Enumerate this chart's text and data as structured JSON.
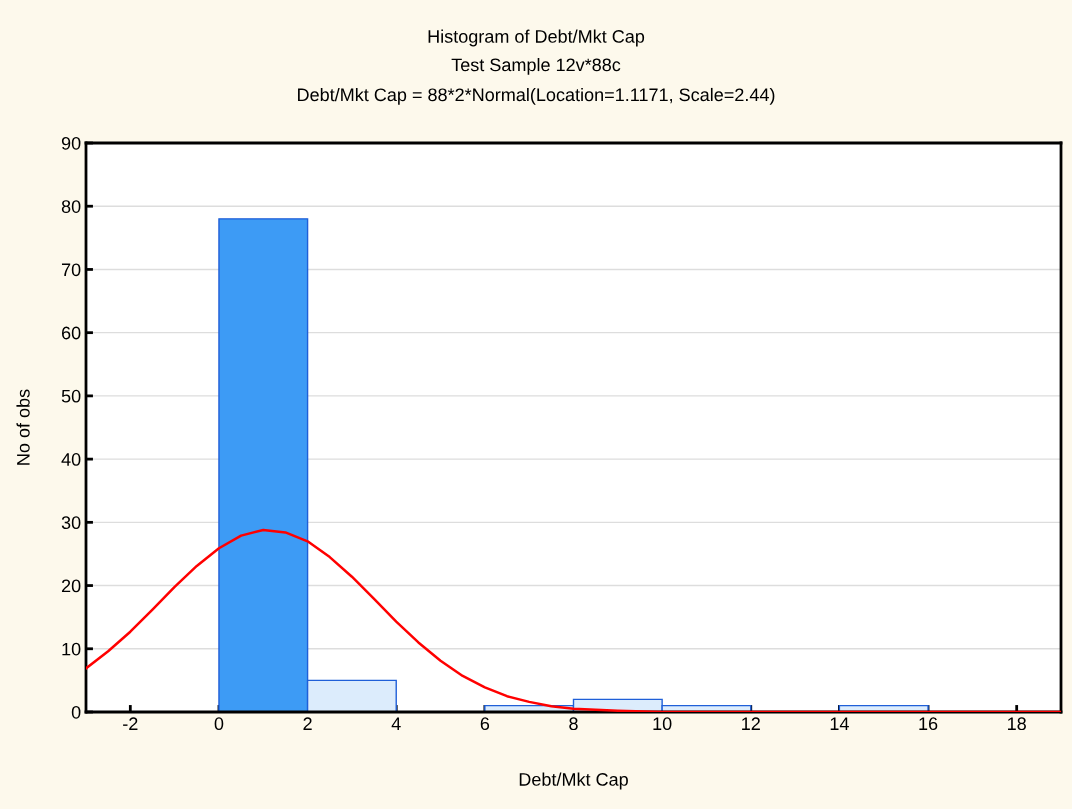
{
  "chart_data": {
    "type": "histogram",
    "title": "Histogram of Debt/Mkt Cap",
    "subtitle": "Test Sample 12v*88c\nDebt/Mkt Cap = 88*2*Normal(Location=1.1171, Scale=2.44)",
    "xlabel": "Debt/Mkt Cap",
    "ylabel": "No of obs",
    "bins": [
      -2,
      0,
      2,
      4,
      6,
      8,
      10,
      12,
      14,
      16,
      18
    ],
    "values": [
      0,
      78,
      5,
      0,
      1,
      2,
      1,
      0,
      1,
      0
    ],
    "colors": [
      "#dcecfc",
      "#3d9bf5",
      "#dcecfc",
      "#dcecfc",
      "#dcecfc",
      "#dcecfc",
      "#dcecfc",
      "#dcecfc",
      "#dcecfc",
      "#dcecfc"
    ],
    "series": [
      {
        "type": "line",
        "color": "#ff0000",
        "x": [
          -3,
          -2.5,
          -2,
          -1.5,
          -1,
          -0.5,
          0,
          0.5,
          1,
          1.5,
          2,
          2.5,
          3,
          3.5,
          4,
          4.5,
          5,
          5.5,
          6,
          6.5,
          7,
          7.5,
          8,
          9,
          10,
          11,
          12,
          14,
          16,
          18,
          19
        ],
        "values": [
          6.9,
          9.6,
          12.7,
          16.2,
          19.8,
          23.1,
          25.9,
          27.9,
          28.8,
          28.4,
          27.0,
          24.5,
          21.4,
          17.9,
          14.3,
          11.0,
          8.1,
          5.7,
          3.9,
          2.5,
          1.6,
          0.9,
          0.5,
          0.2,
          0.0,
          0.0,
          0.0,
          0.0,
          0.0,
          0.0,
          0.0
        ]
      }
    ],
    "xlim": [
      -3,
      19
    ],
    "xticks": [
      -2,
      0,
      2,
      4,
      6,
      8,
      10,
      12,
      14,
      16,
      18
    ],
    "ylim": [
      0,
      90
    ],
    "yticks": [
      0,
      10,
      20,
      30,
      40,
      50,
      60,
      70,
      80,
      90
    ],
    "grid": "y"
  }
}
